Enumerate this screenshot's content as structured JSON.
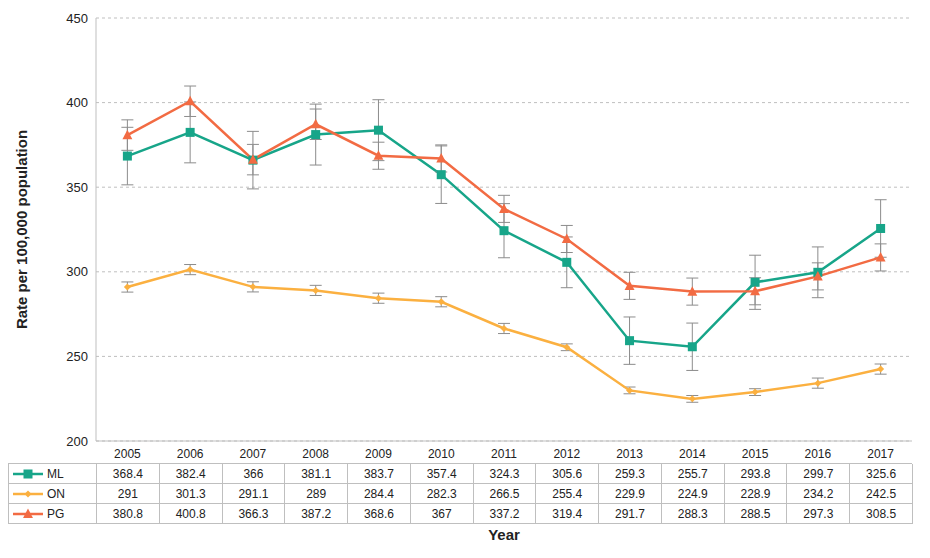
{
  "chart_data": {
    "type": "line",
    "y_label": "Rate per 100,000 population",
    "x_label": "Year",
    "categories": [
      "2005",
      "2006",
      "2007",
      "2008",
      "2009",
      "2010",
      "2011",
      "2012",
      "2013",
      "2014",
      "2015",
      "2016",
      "2017"
    ],
    "series": [
      {
        "name": "ML",
        "color": "#17a589",
        "marker": "square",
        "values": [
          368.4,
          382.4,
          366,
          381.1,
          383.7,
          357.4,
          324.3,
          305.6,
          259.3,
          255.7,
          293.8,
          299.7,
          325.6
        ],
        "errors": [
          17,
          18,
          17,
          18,
          18,
          17,
          16,
          15,
          14,
          14,
          16,
          15,
          17
        ]
      },
      {
        "name": "ON",
        "color": "#fbb040",
        "marker": "diamond",
        "values": [
          291,
          301.3,
          291.1,
          289,
          284.4,
          282.3,
          266.5,
          255.4,
          229.9,
          224.9,
          228.9,
          234.2,
          242.5
        ],
        "errors": [
          3,
          3,
          3,
          3,
          3,
          3,
          3,
          2,
          2,
          2,
          2,
          3,
          3
        ]
      },
      {
        "name": "PG",
        "color": "#f26b43",
        "marker": "triangle",
        "values": [
          380.8,
          400.8,
          366.3,
          387.2,
          368.6,
          367,
          337.2,
          319.4,
          291.7,
          288.3,
          288.5,
          297.3,
          308.5
        ],
        "errors": [
          9,
          9,
          9,
          9,
          8,
          8,
          8,
          8,
          8,
          8,
          8,
          8,
          8
        ]
      }
    ],
    "ylim": [
      200,
      450
    ],
    "yticks": [
      200,
      250,
      300,
      350,
      400,
      450
    ],
    "grid": true
  }
}
